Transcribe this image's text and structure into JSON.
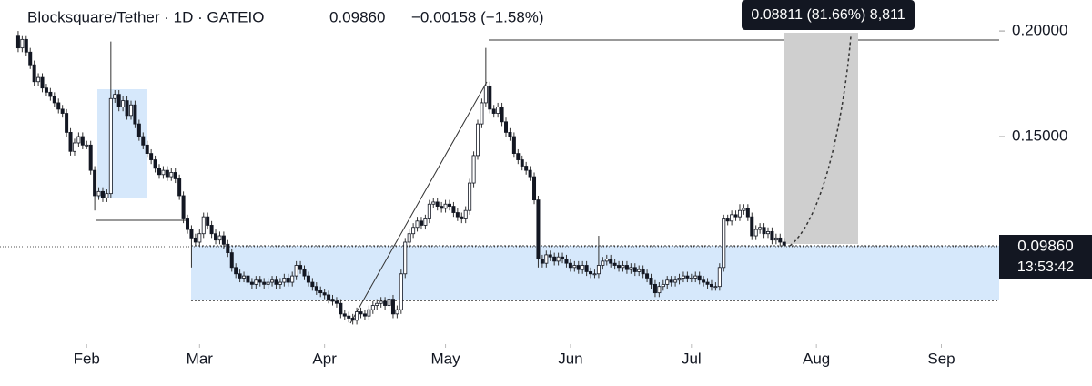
{
  "chart_data": {
    "type": "candlestick",
    "title": "Blocksquare/Tether · 1D · GATEIO",
    "price": "0.09860",
    "change": "−0.00158 (−1.58%)",
    "measure_label": "0.08811 (81.66%) 8,811",
    "price_tag": "0.09860",
    "countdown": "13:53:42",
    "up_color": "#ffffff",
    "down_color": "#131722",
    "wick_color": "#333333",
    "ylim": [
      0.0517,
      0.2147
    ],
    "yticks": [
      {
        "value": 0.15,
        "label": "0.15000"
      },
      {
        "value": 0.2,
        "label": "0.20000"
      }
    ],
    "xlim": [
      -4.5,
      240.4
    ],
    "xticks": [
      {
        "value": 17,
        "label": "Feb"
      },
      {
        "value": 45,
        "label": "Mar"
      },
      {
        "value": 76,
        "label": "Apr"
      },
      {
        "value": 106,
        "label": "May"
      },
      {
        "value": 137,
        "label": "Jun"
      },
      {
        "value": 167,
        "label": "Jul"
      },
      {
        "value": 198,
        "label": "Aug"
      },
      {
        "value": 229,
        "label": "Sep"
      }
    ],
    "candles": [
      [
        0.198,
        0.2,
        0.19,
        0.192
      ],
      [
        0.192,
        0.198,
        0.19,
        0.196
      ],
      [
        0.196,
        0.198,
        0.188,
        0.19
      ],
      [
        0.19,
        0.192,
        0.182,
        0.184
      ],
      [
        0.184,
        0.186,
        0.174,
        0.176
      ],
      [
        0.176,
        0.18,
        0.174,
        0.178
      ],
      [
        0.178,
        0.18,
        0.171,
        0.173
      ],
      [
        0.173,
        0.175,
        0.169,
        0.171
      ],
      [
        0.171,
        0.173,
        0.167,
        0.169
      ],
      [
        0.169,
        0.171,
        0.164,
        0.166
      ],
      [
        0.166,
        0.168,
        0.161,
        0.163
      ],
      [
        0.163,
        0.165,
        0.159,
        0.161
      ],
      [
        0.161,
        0.163,
        0.15,
        0.152
      ],
      [
        0.152,
        0.154,
        0.141,
        0.143
      ],
      [
        0.143,
        0.149,
        0.141,
        0.147
      ],
      [
        0.147,
        0.152,
        0.145,
        0.15
      ],
      [
        0.15,
        0.152,
        0.144,
        0.146
      ],
      [
        0.146,
        0.148,
        0.144,
        0.146
      ],
      [
        0.146,
        0.148,
        0.132,
        0.134
      ],
      [
        0.134,
        0.136,
        0.115,
        0.122
      ],
      [
        0.122,
        0.126,
        0.12,
        0.124
      ],
      [
        0.124,
        0.126,
        0.119,
        0.121
      ],
      [
        0.121,
        0.125,
        0.119,
        0.123
      ],
      [
        0.123,
        0.195,
        0.121,
        0.168
      ],
      [
        0.168,
        0.172,
        0.166,
        0.17
      ],
      [
        0.17,
        0.172,
        0.162,
        0.164
      ],
      [
        0.164,
        0.169,
        0.162,
        0.167
      ],
      [
        0.167,
        0.169,
        0.158,
        0.16
      ],
      [
        0.16,
        0.167,
        0.158,
        0.165
      ],
      [
        0.165,
        0.167,
        0.154,
        0.156
      ],
      [
        0.156,
        0.158,
        0.148,
        0.15
      ],
      [
        0.15,
        0.152,
        0.144,
        0.146
      ],
      [
        0.146,
        0.148,
        0.14,
        0.142
      ],
      [
        0.142,
        0.144,
        0.137,
        0.139
      ],
      [
        0.139,
        0.141,
        0.133,
        0.135
      ],
      [
        0.135,
        0.137,
        0.13,
        0.132
      ],
      [
        0.132,
        0.136,
        0.13,
        0.134
      ],
      [
        0.134,
        0.136,
        0.129,
        0.131
      ],
      [
        0.131,
        0.135,
        0.129,
        0.133
      ],
      [
        0.133,
        0.135,
        0.128,
        0.13
      ],
      [
        0.13,
        0.132,
        0.12,
        0.122
      ],
      [
        0.122,
        0.124,
        0.109,
        0.111
      ],
      [
        0.111,
        0.113,
        0.104,
        0.106
      ],
      [
        0.106,
        0.108,
        0.088,
        0.102
      ],
      [
        0.102,
        0.104,
        0.098,
        0.1
      ],
      [
        0.1,
        0.106,
        0.098,
        0.104
      ],
      [
        0.104,
        0.114,
        0.102,
        0.112
      ],
      [
        0.112,
        0.114,
        0.106,
        0.108
      ],
      [
        0.108,
        0.11,
        0.102,
        0.104
      ],
      [
        0.104,
        0.106,
        0.099,
        0.101
      ],
      [
        0.101,
        0.105,
        0.099,
        0.103
      ],
      [
        0.103,
        0.105,
        0.097,
        0.099
      ],
      [
        0.099,
        0.101,
        0.093,
        0.095
      ],
      [
        0.095,
        0.097,
        0.086,
        0.088
      ],
      [
        0.088,
        0.09,
        0.083,
        0.085
      ],
      [
        0.085,
        0.087,
        0.081,
        0.083
      ],
      [
        0.083,
        0.086,
        0.081,
        0.084
      ],
      [
        0.084,
        0.086,
        0.079,
        0.081
      ],
      [
        0.081,
        0.083,
        0.078,
        0.08
      ],
      [
        0.08,
        0.084,
        0.078,
        0.082
      ],
      [
        0.082,
        0.084,
        0.079,
        0.081
      ],
      [
        0.081,
        0.083,
        0.078,
        0.08
      ],
      [
        0.08,
        0.083,
        0.078,
        0.081
      ],
      [
        0.081,
        0.084,
        0.079,
        0.082
      ],
      [
        0.082,
        0.084,
        0.078,
        0.08
      ],
      [
        0.08,
        0.083,
        0.078,
        0.081
      ],
      [
        0.081,
        0.085,
        0.079,
        0.083
      ],
      [
        0.083,
        0.085,
        0.079,
        0.081
      ],
      [
        0.081,
        0.086,
        0.079,
        0.084
      ],
      [
        0.084,
        0.091,
        0.082,
        0.089
      ],
      [
        0.089,
        0.091,
        0.085,
        0.087
      ],
      [
        0.087,
        0.089,
        0.082,
        0.084
      ],
      [
        0.084,
        0.086,
        0.079,
        0.081
      ],
      [
        0.081,
        0.083,
        0.077,
        0.079
      ],
      [
        0.079,
        0.081,
        0.075,
        0.077
      ],
      [
        0.077,
        0.079,
        0.074,
        0.076
      ],
      [
        0.076,
        0.078,
        0.073,
        0.075
      ],
      [
        0.075,
        0.077,
        0.071,
        0.073
      ],
      [
        0.073,
        0.075,
        0.07,
        0.072
      ],
      [
        0.072,
        0.074,
        0.069,
        0.071
      ],
      [
        0.071,
        0.073,
        0.064,
        0.066
      ],
      [
        0.066,
        0.068,
        0.063,
        0.065
      ],
      [
        0.065,
        0.067,
        0.062,
        0.064
      ],
      [
        0.064,
        0.066,
        0.061,
        0.063
      ],
      [
        0.063,
        0.069,
        0.061,
        0.067
      ],
      [
        0.067,
        0.069,
        0.064,
        0.066
      ],
      [
        0.066,
        0.068,
        0.063,
        0.065
      ],
      [
        0.065,
        0.07,
        0.063,
        0.068
      ],
      [
        0.068,
        0.072,
        0.066,
        0.07
      ],
      [
        0.07,
        0.073,
        0.068,
        0.071
      ],
      [
        0.071,
        0.074,
        0.069,
        0.072
      ],
      [
        0.072,
        0.074,
        0.068,
        0.07
      ],
      [
        0.07,
        0.075,
        0.068,
        0.073
      ],
      [
        0.073,
        0.075,
        0.064,
        0.066
      ],
      [
        0.066,
        0.07,
        0.064,
        0.068
      ],
      [
        0.068,
        0.087,
        0.066,
        0.085
      ],
      [
        0.085,
        0.102,
        0.083,
        0.1
      ],
      [
        0.1,
        0.106,
        0.098,
        0.104
      ],
      [
        0.104,
        0.109,
        0.102,
        0.107
      ],
      [
        0.107,
        0.112,
        0.105,
        0.11
      ],
      [
        0.11,
        0.112,
        0.106,
        0.108
      ],
      [
        0.108,
        0.113,
        0.106,
        0.111
      ],
      [
        0.111,
        0.12,
        0.109,
        0.118
      ],
      [
        0.118,
        0.121,
        0.116,
        0.119
      ],
      [
        0.119,
        0.121,
        0.115,
        0.117
      ],
      [
        0.117,
        0.119,
        0.114,
        0.116
      ],
      [
        0.116,
        0.12,
        0.114,
        0.118
      ],
      [
        0.118,
        0.12,
        0.115,
        0.117
      ],
      [
        0.117,
        0.119,
        0.112,
        0.114
      ],
      [
        0.114,
        0.116,
        0.11,
        0.112
      ],
      [
        0.112,
        0.114,
        0.109,
        0.111
      ],
      [
        0.111,
        0.117,
        0.109,
        0.115
      ],
      [
        0.115,
        0.13,
        0.113,
        0.128
      ],
      [
        0.128,
        0.143,
        0.126,
        0.141
      ],
      [
        0.141,
        0.158,
        0.139,
        0.156
      ],
      [
        0.156,
        0.168,
        0.154,
        0.166
      ],
      [
        0.166,
        0.192,
        0.164,
        0.174
      ],
      [
        0.174,
        0.176,
        0.161,
        0.163
      ],
      [
        0.163,
        0.165,
        0.159,
        0.161
      ],
      [
        0.161,
        0.166,
        0.159,
        0.164
      ],
      [
        0.164,
        0.166,
        0.155,
        0.157
      ],
      [
        0.157,
        0.159,
        0.15,
        0.152
      ],
      [
        0.152,
        0.154,
        0.148,
        0.15
      ],
      [
        0.15,
        0.152,
        0.14,
        0.142
      ],
      [
        0.142,
        0.144,
        0.137,
        0.139
      ],
      [
        0.139,
        0.141,
        0.134,
        0.136
      ],
      [
        0.136,
        0.138,
        0.132,
        0.134
      ],
      [
        0.134,
        0.136,
        0.129,
        0.131
      ],
      [
        0.131,
        0.133,
        0.118,
        0.12
      ],
      [
        0.12,
        0.122,
        0.088,
        0.092
      ],
      [
        0.092,
        0.094,
        0.088,
        0.09
      ],
      [
        0.09,
        0.096,
        0.088,
        0.094
      ],
      [
        0.094,
        0.096,
        0.091,
        0.093
      ],
      [
        0.093,
        0.095,
        0.089,
        0.091
      ],
      [
        0.091,
        0.095,
        0.089,
        0.093
      ],
      [
        0.093,
        0.095,
        0.09,
        0.092
      ],
      [
        0.092,
        0.094,
        0.088,
        0.09
      ],
      [
        0.09,
        0.092,
        0.086,
        0.088
      ],
      [
        0.088,
        0.091,
        0.086,
        0.089
      ],
      [
        0.089,
        0.091,
        0.085,
        0.087
      ],
      [
        0.087,
        0.091,
        0.085,
        0.089
      ],
      [
        0.089,
        0.091,
        0.084,
        0.086
      ],
      [
        0.086,
        0.088,
        0.083,
        0.085
      ],
      [
        0.085,
        0.087,
        0.083,
        0.085
      ],
      [
        0.085,
        0.103,
        0.083,
        0.089
      ],
      [
        0.089,
        0.093,
        0.087,
        0.091
      ],
      [
        0.091,
        0.094,
        0.089,
        0.092
      ],
      [
        0.092,
        0.094,
        0.088,
        0.09
      ],
      [
        0.09,
        0.092,
        0.087,
        0.089
      ],
      [
        0.089,
        0.091,
        0.086,
        0.088
      ],
      [
        0.088,
        0.091,
        0.086,
        0.089
      ],
      [
        0.089,
        0.091,
        0.085,
        0.087
      ],
      [
        0.087,
        0.09,
        0.085,
        0.088
      ],
      [
        0.088,
        0.09,
        0.084,
        0.086
      ],
      [
        0.086,
        0.089,
        0.084,
        0.087
      ],
      [
        0.087,
        0.089,
        0.083,
        0.085
      ],
      [
        0.085,
        0.087,
        0.081,
        0.083
      ],
      [
        0.083,
        0.085,
        0.078,
        0.08
      ],
      [
        0.08,
        0.082,
        0.074,
        0.076
      ],
      [
        0.076,
        0.081,
        0.074,
        0.079
      ],
      [
        0.079,
        0.082,
        0.077,
        0.08
      ],
      [
        0.08,
        0.084,
        0.078,
        0.082
      ],
      [
        0.082,
        0.084,
        0.079,
        0.081
      ],
      [
        0.081,
        0.084,
        0.079,
        0.082
      ],
      [
        0.082,
        0.085,
        0.08,
        0.083
      ],
      [
        0.083,
        0.086,
        0.081,
        0.084
      ],
      [
        0.084,
        0.086,
        0.081,
        0.083
      ],
      [
        0.083,
        0.085,
        0.081,
        0.083
      ],
      [
        0.083,
        0.086,
        0.081,
        0.084
      ],
      [
        0.084,
        0.086,
        0.08,
        0.082
      ],
      [
        0.082,
        0.084,
        0.079,
        0.081
      ],
      [
        0.081,
        0.083,
        0.078,
        0.08
      ],
      [
        0.08,
        0.082,
        0.077,
        0.079
      ],
      [
        0.079,
        0.081,
        0.077,
        0.079
      ],
      [
        0.079,
        0.09,
        0.077,
        0.088
      ],
      [
        0.088,
        0.113,
        0.086,
        0.111
      ],
      [
        0.111,
        0.113,
        0.108,
        0.11
      ],
      [
        0.11,
        0.115,
        0.108,
        0.113
      ],
      [
        0.113,
        0.115,
        0.11,
        0.112
      ],
      [
        0.112,
        0.118,
        0.11,
        0.115
      ],
      [
        0.115,
        0.118,
        0.113,
        0.116
      ],
      [
        0.116,
        0.118,
        0.11,
        0.112
      ],
      [
        0.112,
        0.114,
        0.101,
        0.103
      ],
      [
        0.103,
        0.108,
        0.101,
        0.106
      ],
      [
        0.106,
        0.109,
        0.104,
        0.107
      ],
      [
        0.107,
        0.109,
        0.102,
        0.104
      ],
      [
        0.104,
        0.107,
        0.102,
        0.105
      ],
      [
        0.105,
        0.107,
        0.099,
        0.101
      ],
      [
        0.101,
        0.104,
        0.099,
        0.102
      ],
      [
        0.102,
        0.104,
        0.098,
        0.1
      ],
      [
        0.1,
        0.102,
        0.0976,
        0.0986
      ]
    ]
  }
}
